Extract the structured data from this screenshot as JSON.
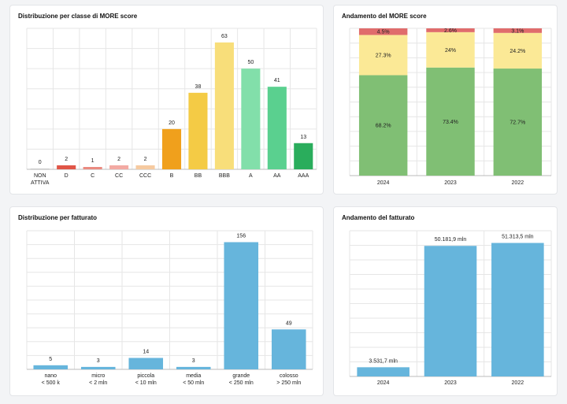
{
  "panels": {
    "more_dist": {
      "title": "Distribuzione per classe di MORE score"
    },
    "more_trend": {
      "title": "Andamento del MORE score"
    },
    "rev_dist": {
      "title": "Distribuzione per fatturato"
    },
    "rev_trend": {
      "title": "Andamento del fatturato"
    }
  },
  "colors": {
    "grid": "#e6e6e6",
    "axis": "#bbbbbb",
    "revenue_bar": "#66b5dc",
    "stack_red": "#e06c6c",
    "stack_yellow": "#fbe996",
    "stack_green": "#80bf74"
  },
  "chart_data": [
    {
      "id": "more_dist",
      "type": "bar",
      "title": "Distribuzione per classe di MORE score",
      "categories": [
        [
          "NON",
          "ATTIVA"
        ],
        [
          "D"
        ],
        [
          "C"
        ],
        [
          "CC"
        ],
        [
          "CCC"
        ],
        [
          "B"
        ],
        [
          "BB"
        ],
        [
          "BBB"
        ],
        [
          "A"
        ],
        [
          "AA"
        ],
        [
          "AAA"
        ]
      ],
      "values": [
        0,
        2,
        1,
        2,
        2,
        20,
        38,
        63,
        50,
        41,
        13
      ],
      "value_labels": [
        "0",
        "2",
        "1",
        "2",
        "2",
        "20",
        "38",
        "63",
        "50",
        "41",
        "13"
      ],
      "colors": [
        "#c8c8c8",
        "#e05547",
        "#ea8a80",
        "#f3aaa3",
        "#f6caa0",
        "#f0a01c",
        "#f4cb45",
        "#f8de7a",
        "#82dfaa",
        "#5ad08f",
        "#2aad5c"
      ],
      "ylim": [
        0,
        70
      ],
      "grid": true
    },
    {
      "id": "more_trend",
      "type": "bar",
      "stacked": true,
      "title": "Andamento del MORE score",
      "categories": [
        "2024",
        "2023",
        "2022"
      ],
      "series": [
        {
          "color": "#80bf74",
          "values": [
            68.2,
            73.4,
            72.7
          ],
          "labels": [
            "68.2%",
            "73.4%",
            "72.7%"
          ]
        },
        {
          "color": "#fbe996",
          "values": [
            27.3,
            24,
            24.2
          ],
          "labels": [
            "27.3%",
            "24%",
            "24.2%"
          ]
        },
        {
          "color": "#e06c6c",
          "values": [
            4.5,
            2.6,
            3.1
          ],
          "labels": [
            "4.5%",
            "2.6%",
            "3.1%"
          ]
        }
      ],
      "ylim": [
        0,
        100
      ],
      "grid": true
    },
    {
      "id": "rev_dist",
      "type": "bar",
      "title": "Distribuzione per fatturato",
      "categories": [
        [
          "nano",
          "< 500 k"
        ],
        [
          "micro",
          "< 2 mln"
        ],
        [
          "piccola",
          "< 10 mln"
        ],
        [
          "media",
          "< 50 mln"
        ],
        [
          "grande",
          "< 250 mln"
        ],
        [
          "colosso",
          "> 250 mln"
        ]
      ],
      "values": [
        5,
        3,
        14,
        3,
        156,
        49
      ],
      "value_labels": [
        "5",
        "3",
        "14",
        "3",
        "156",
        "49"
      ],
      "ylim": [
        0,
        170
      ],
      "grid": true
    },
    {
      "id": "rev_trend",
      "type": "bar",
      "title": "Andamento del fatturato",
      "categories": [
        [
          "2024"
        ],
        [
          "2023"
        ],
        [
          "2022"
        ]
      ],
      "values": [
        3531.7,
        50181.9,
        51313.5
      ],
      "value_labels": [
        "3.531,7 mln",
        "50.181,9 mln",
        "51.313,5 mln"
      ],
      "ylim": [
        0,
        56000
      ],
      "grid": true
    }
  ]
}
